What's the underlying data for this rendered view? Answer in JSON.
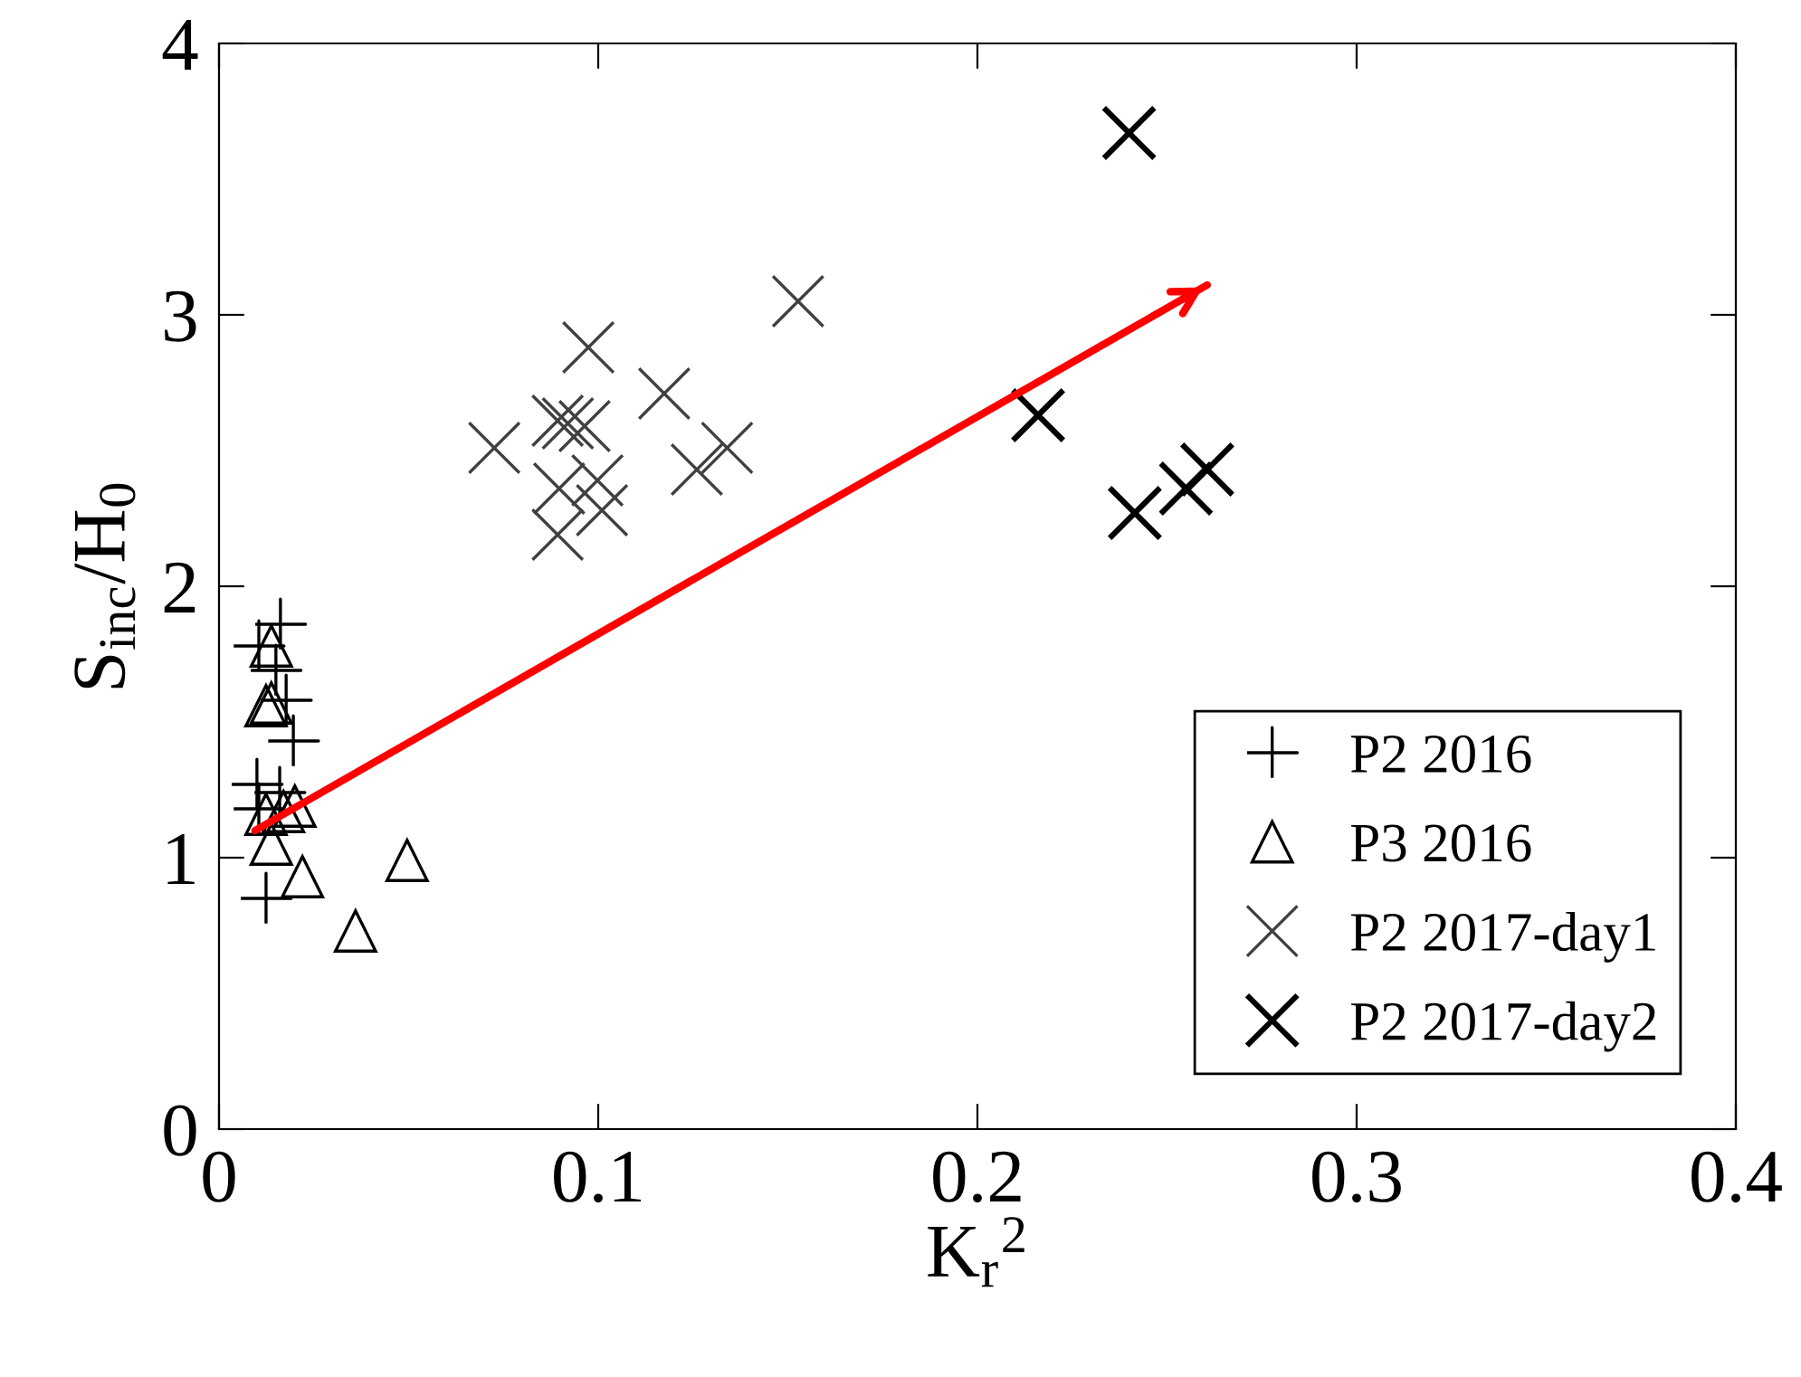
{
  "chart_data": {
    "type": "scatter",
    "xlabel": "K$_{r}$$^{2}$",
    "ylabel": "S$_{inc}$/H$_{0}$",
    "xlim": [
      0,
      0.4
    ],
    "ylim": [
      0,
      4
    ],
    "xticks": [
      0,
      0.1,
      0.2,
      0.3,
      0.4
    ],
    "yticks": [
      0,
      1,
      2,
      3,
      4
    ],
    "grid": false,
    "legend": "bottom right",
    "series": [
      {
        "name": "P2 2016",
        "color": "#000000",
        "marker": "plus",
        "x": [
          0.0162,
          0.0105,
          0.015,
          0.0177,
          0.0196,
          0.01,
          0.016,
          0.0105,
          0.0124
        ],
        "values": [
          1.86,
          1.78,
          1.69,
          1.58,
          1.43,
          1.27,
          1.24,
          1.18,
          0.85
        ]
      },
      {
        "name": "P3 2016",
        "color": "#000000",
        "marker": "triangle",
        "x": [
          0.0138,
          0.0124,
          0.0138,
          0.02,
          0.0124,
          0.017,
          0.0138,
          0.0496,
          0.022,
          0.036
        ],
        "values": [
          1.78,
          1.56,
          1.57,
          1.19,
          1.16,
          1.17,
          1.05,
          0.99,
          0.93,
          0.73
        ]
      },
      {
        "name": "P2 2017-day1",
        "color": "#404040",
        "marker": "cross",
        "x": [
          0.0726,
          0.0974,
          0.0893,
          0.092,
          0.0964,
          0.1174,
          0.134,
          0.126,
          0.0897,
          0.0998,
          0.101,
          0.0893,
          0.1527
        ],
        "values": [
          2.51,
          2.88,
          2.61,
          2.6,
          2.59,
          2.71,
          2.51,
          2.43,
          2.36,
          2.39,
          2.28,
          2.19,
          3.05
        ]
      },
      {
        "name": "P2 2017-day2",
        "color": "#000000",
        "marker": "cross",
        "x": [
          0.24,
          0.216,
          0.2415,
          0.255,
          0.2606
        ],
        "values": [
          3.67,
          2.63,
          2.27,
          2.36,
          2.43
        ]
      },
      {
        "type": "line",
        "color": "#ff0000",
        "x": [
          0.0095,
          0.2606
        ],
        "values": [
          1.1,
          3.11
        ]
      }
    ]
  }
}
